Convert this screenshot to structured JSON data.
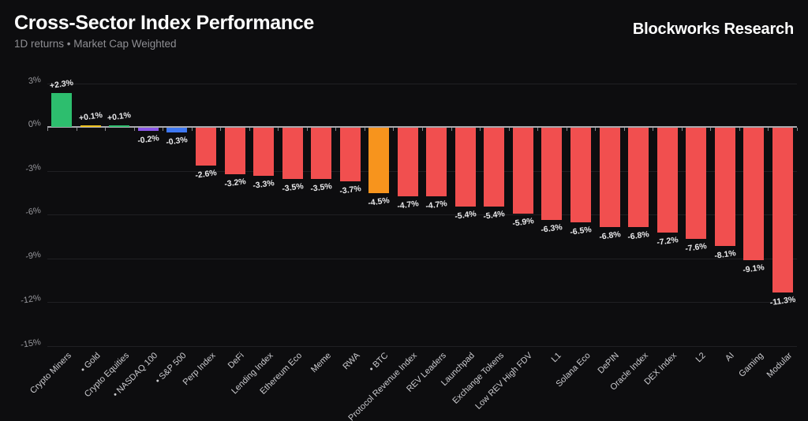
{
  "header": {
    "title": "Cross-Sector Index Performance",
    "subtitle": "1D returns • Market Cap Weighted",
    "brand": "Blockworks Research"
  },
  "palette": {
    "background": "#0d0d0f",
    "title_text": "#ffffff",
    "subtitle_text": "#8e8e93",
    "axis_line": "#a9a9ae",
    "gridline": "#202023",
    "y_label_text": "#98989d",
    "x_label_text": "#cbcbcf",
    "value_label_text": "#e8e8ea",
    "positive_green": "#2dbe6e",
    "gold_yellow": "#eec21f",
    "nasdaq_purple": "#8a56e8",
    "sp500_blue": "#3e78f2",
    "btc_orange": "#f7941d",
    "negative_red": "#f14f4f"
  },
  "chart_data": {
    "type": "bar",
    "title": "Cross-Sector Index Performance",
    "subtitle": "1D returns • Market Cap Weighted",
    "xlabel": "",
    "ylabel": "",
    "ylim": [
      -15,
      3
    ],
    "yticks": [
      3,
      0,
      -3,
      -6,
      -9,
      -12,
      -15
    ],
    "ytick_labels": [
      "3%",
      "0%",
      "-3%",
      "-6%",
      "-9%",
      "-12%",
      "-15%"
    ],
    "grid": true,
    "legend": false,
    "categories": [
      "Crypto Miners",
      "• Gold",
      "Crypto Equities",
      "• NASDAQ 100",
      "• S&P 500",
      "Perp Index",
      "DeFi",
      "Lending Index",
      "Ethereum Eco",
      "Meme",
      "RWA",
      "• BTC",
      "Protocol Revenue Index",
      "REV Leaders",
      "Launchpad",
      "Exchange Tokens",
      "Low REV High FDV",
      "L1",
      "Solana Eco",
      "DePIN",
      "Oracle Index",
      "DEX Index",
      "L2",
      "AI",
      "Gaming",
      "Modular"
    ],
    "values": [
      2.3,
      0.1,
      0.1,
      -0.2,
      -0.3,
      -2.6,
      -3.2,
      -3.3,
      -3.5,
      -3.5,
      -3.7,
      -4.5,
      -4.7,
      -4.7,
      -5.4,
      -5.4,
      -5.9,
      -6.3,
      -6.5,
      -6.8,
      -6.8,
      -7.2,
      -7.6,
      -8.1,
      -9.1,
      -11.3
    ],
    "value_labels": [
      "+2.3%",
      "+0.1%",
      "+0.1%",
      "-0.2%",
      "-0.3%",
      "-2.6%",
      "-3.2%",
      "-3.3%",
      "-3.5%",
      "-3.5%",
      "-3.7%",
      "-4.5%",
      "-4.7%",
      "-4.7%",
      "-5.4%",
      "-5.4%",
      "-5.9%",
      "-6.3%",
      "-6.5%",
      "-6.8%",
      "-6.8%",
      "-7.2%",
      "-7.6%",
      "-8.1%",
      "-9.1%",
      "-11.3%"
    ],
    "bar_colors": [
      "#2dbe6e",
      "#eec21f",
      "#2dbe6e",
      "#8a56e8",
      "#3e78f2",
      "#f14f4f",
      "#f14f4f",
      "#f14f4f",
      "#f14f4f",
      "#f14f4f",
      "#f14f4f",
      "#f7941d",
      "#f14f4f",
      "#f14f4f",
      "#f14f4f",
      "#f14f4f",
      "#f14f4f",
      "#f14f4f",
      "#f14f4f",
      "#f14f4f",
      "#f14f4f",
      "#f14f4f",
      "#f14f4f",
      "#f14f4f",
      "#f14f4f",
      "#f14f4f"
    ]
  }
}
